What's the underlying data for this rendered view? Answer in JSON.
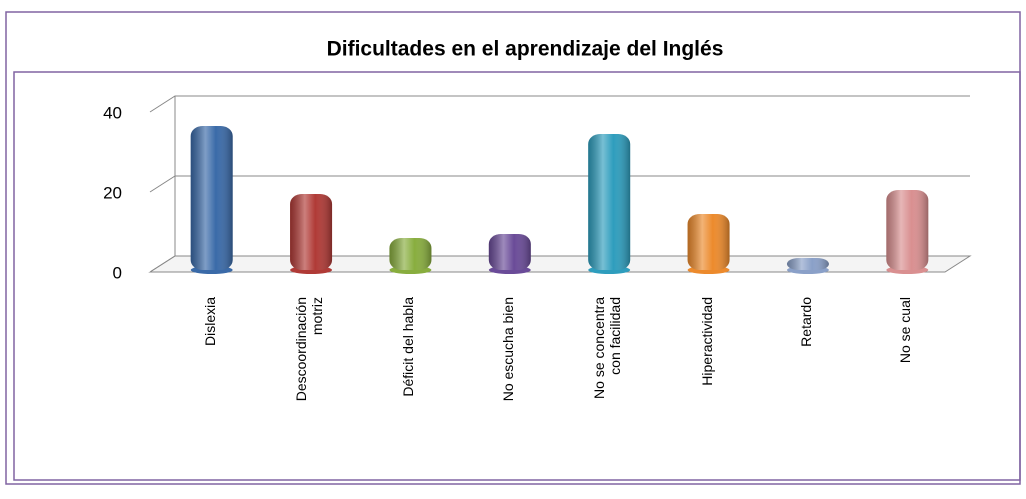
{
  "chart_data": {
    "type": "bar",
    "title": "Dificultades en el aprendizaje del Inglés",
    "categories": [
      "Dislexia",
      "Descoordinación\nmotriz",
      "Déficit del habla",
      "No escucha bien",
      "No se concentra\ncon facilidad",
      "Hiperactividad",
      "Retardo",
      "No se cual"
    ],
    "values": [
      35,
      18,
      7,
      8,
      33,
      13,
      1,
      19
    ],
    "colors": [
      "#3a6aa8",
      "#b03a36",
      "#88ad3e",
      "#6a4b98",
      "#2e9dbd",
      "#ec8a2c",
      "#8aa0c8",
      "#d98f90"
    ],
    "ylim": [
      0,
      40
    ],
    "yticks": [
      0,
      20,
      40
    ],
    "grid": true
  }
}
